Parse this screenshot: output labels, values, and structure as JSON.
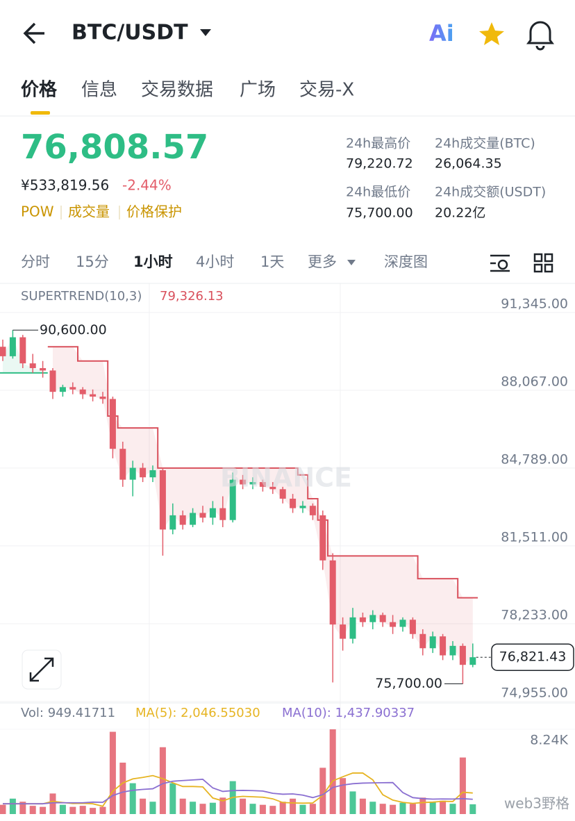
{
  "header": {
    "title": "BTC/USDT",
    "ai": "Ai"
  },
  "tabs": [
    "价格",
    "信息",
    "交易数据",
    "广场",
    "交易-X"
  ],
  "ticker": {
    "price": "76,808.57",
    "cny": "¥533,819.56",
    "change": "-2.44%",
    "tags": [
      "POW",
      "成交量",
      "价格保护"
    ],
    "stats": [
      {
        "label": "24h最高价",
        "value": "79,220.72"
      },
      {
        "label": "24h成交量(BTC)",
        "value": "26,064.35"
      },
      {
        "label": "24h最低价",
        "value": "75,700.00"
      },
      {
        "label": "24h成交额(USDT)",
        "value": "20.22亿"
      }
    ]
  },
  "intervals": [
    "分时",
    "15分",
    "1小时",
    "4小时",
    "1天",
    "更多",
    "深度图"
  ],
  "watermark": "web3野格",
  "chart_data": {
    "type": "candlestick",
    "indicator": "SUPERTREND(10,3)",
    "indicator_value": {
      "value": 79326.13,
      "label": "79,326.13"
    },
    "logo": "BINANCE",
    "up_color": "#2ebd85",
    "down_color": "#e35d6a",
    "trend_down_color": "#d9505c",
    "trend_up_color": "#2ebd85",
    "ylim": [
      74955,
      92569
    ],
    "yticks": [
      {
        "value": 91345,
        "label": "91,345.00"
      },
      {
        "value": 88067,
        "label": "88,067.00"
      },
      {
        "value": 84789,
        "label": "84,789.00"
      },
      {
        "value": 81511,
        "label": "81,511.00"
      },
      {
        "value": 78233,
        "label": "78,233.00"
      },
      {
        "value": 74955,
        "label": "74,955.00"
      }
    ],
    "ohlc": [
      [
        89900,
        90200,
        89300,
        89500
      ],
      [
        89500,
        90600,
        89400,
        90300
      ],
      [
        90300,
        90400,
        89000,
        89200
      ],
      [
        89200,
        89600,
        88800,
        89000
      ],
      [
        89000,
        89300,
        88600,
        88900
      ],
      [
        88900,
        89000,
        87700,
        88000
      ],
      [
        88000,
        88300,
        87800,
        88200
      ],
      [
        88200,
        88400,
        87900,
        88100
      ],
      [
        88100,
        88200,
        87700,
        87900
      ],
      [
        87900,
        88100,
        87600,
        87800
      ],
      [
        87800,
        88000,
        87500,
        87700
      ],
      [
        87700,
        87800,
        85200,
        85600
      ],
      [
        85600,
        85900,
        84000,
        84300
      ],
      [
        84300,
        85100,
        83600,
        84800
      ],
      [
        84800,
        85000,
        84200,
        84400
      ],
      [
        84400,
        84900,
        84200,
        84700
      ],
      [
        84700,
        84800,
        81100,
        82200
      ],
      [
        82200,
        83300,
        82000,
        82800
      ],
      [
        82800,
        83000,
        82200,
        82400
      ],
      [
        82400,
        83100,
        82300,
        82900
      ],
      [
        82900,
        83200,
        82500,
        82700
      ],
      [
        82700,
        83400,
        82400,
        83100
      ],
      [
        83100,
        83600,
        82300,
        82600
      ],
      [
        82600,
        84600,
        82500,
        84300
      ],
      [
        84300,
        84500,
        83900,
        84100
      ],
      [
        84100,
        84400,
        83900,
        84200
      ],
      [
        84200,
        84300,
        83800,
        84000
      ],
      [
        84000,
        84200,
        83700,
        83900
      ],
      [
        83900,
        84000,
        83300,
        83500
      ],
      [
        83500,
        83700,
        82900,
        83100
      ],
      [
        83100,
        83400,
        82900,
        83200
      ],
      [
        83200,
        83300,
        82600,
        82800
      ],
      [
        82800,
        83000,
        80500,
        80900
      ],
      [
        80900,
        81200,
        75760,
        78200
      ],
      [
        78200,
        78500,
        77100,
        77600
      ],
      [
        77600,
        78900,
        77400,
        78500
      ],
      [
        78500,
        78700,
        78100,
        78300
      ],
      [
        78300,
        78800,
        78000,
        78600
      ],
      [
        78600,
        78700,
        78100,
        78300
      ],
      [
        78300,
        78600,
        77800,
        78100
      ],
      [
        78100,
        78500,
        77900,
        78400
      ],
      [
        78400,
        78500,
        77600,
        77800
      ],
      [
        77800,
        78000,
        76900,
        77200
      ],
      [
        77200,
        77900,
        77000,
        77700
      ],
      [
        77700,
        77800,
        76700,
        76900
      ],
      [
        76900,
        77500,
        76700,
        77300
      ],
      [
        77300,
        77400,
        75700,
        76500
      ],
      [
        76500,
        77400,
        76400,
        76821.43
      ]
    ],
    "supertrend_up": [
      88800,
      88800,
      88800,
      88800,
      88800,
      null,
      null,
      null,
      null,
      null,
      null,
      null,
      null,
      null,
      null,
      null,
      null,
      null,
      null,
      null,
      null,
      null,
      null,
      null,
      null,
      null,
      null,
      null,
      null,
      null,
      null,
      null,
      null,
      null,
      null,
      null,
      null,
      null,
      null,
      null,
      null,
      null,
      null,
      null,
      null,
      null,
      null,
      null
    ],
    "supertrend_down": [
      null,
      null,
      null,
      null,
      null,
      89900,
      89900,
      89900,
      89300,
      89300,
      89300,
      86980,
      86480,
      86480,
      86480,
      86480,
      84790,
      84790,
      84790,
      84790,
      84790,
      84790,
      84790,
      84790,
      84790,
      84790,
      84790,
      84790,
      84790,
      84790,
      84500,
      83500,
      82600,
      81090,
      81090,
      81090,
      81090,
      81090,
      81090,
      81090,
      81090,
      81090,
      80130,
      80130,
      80130,
      80130,
      79326.13,
      79326.13
    ],
    "high_label": {
      "value": 90600,
      "label": "90,600.00"
    },
    "low_label": {
      "value": 75700,
      "label": "75,700.00"
    },
    "last_price": {
      "value": 76821.43,
      "label": "76,821.43"
    },
    "volume": {
      "legend": [
        "Vol: 949.41711",
        "MA(5): 2,046.55030",
        "MA(10): 1,437.90337"
      ],
      "ylim": [
        0,
        8240
      ],
      "yticks": [
        {
          "value": 8240,
          "label": "8.24K"
        }
      ],
      "ma5_color": "#e6b422",
      "ma10_color": "#8a6fd1",
      "values": [
        900,
        1500,
        1200,
        800,
        700,
        2000,
        900,
        700,
        800,
        600,
        700,
        8000,
        5000,
        3000,
        1500,
        1200,
        6500,
        3000,
        1500,
        1200,
        1000,
        1100,
        1600,
        3200,
        1500,
        1000,
        900,
        800,
        1200,
        1500,
        900,
        1000,
        4500,
        8240,
        3500,
        2200,
        1500,
        1200,
        1000,
        900,
        1100,
        1000,
        1600,
        1200,
        1300,
        1000,
        5500,
        949.41711
      ],
      "ma5": [
        1000,
        1000,
        1000,
        1000,
        1000,
        1240,
        1120,
        1020,
        1040,
        1000,
        760,
        2220,
        3020,
        3420,
        3560,
        3740,
        3440,
        3040,
        2680,
        2680,
        2640,
        1560,
        1280,
        1620,
        1720,
        1680,
        1640,
        1480,
        1120,
        1080,
        1060,
        1080,
        1820,
        3228,
        3628,
        3988,
        3988,
        3328,
        1880,
        1360,
        1140,
        1040,
        1120,
        1160,
        1240,
        1220,
        2120,
        2046.5503
      ],
      "ma10": [
        1000,
        1000,
        1000,
        1000,
        1000,
        1100,
        1100,
        1100,
        1100,
        1160,
        1140,
        1800,
        2140,
        2310,
        2400,
        2460,
        2960,
        3190,
        3260,
        3320,
        3380,
        2540,
        2200,
        2280,
        2300,
        2280,
        2240,
        2020,
        1930,
        1960,
        1840,
        1600,
        1880,
        2590,
        2820,
        2950,
        3010,
        3030,
        3050,
        3060,
        2090,
        1600,
        1500,
        1450,
        1470,
        1460,
        1500,
        1437.90337
      ]
    }
  }
}
